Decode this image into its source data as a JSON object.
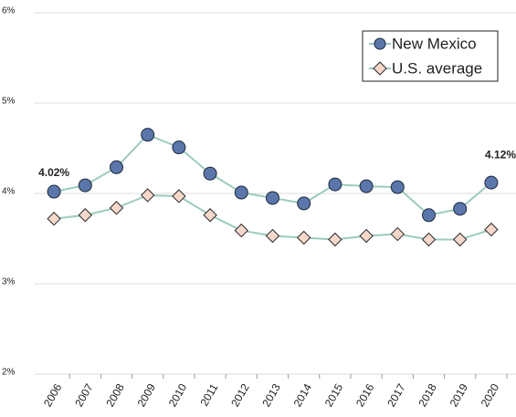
{
  "chart_data": {
    "type": "line",
    "categories": [
      "2006",
      "2007",
      "2008",
      "2009",
      "2010",
      "2011",
      "2012",
      "2013",
      "2014",
      "2015",
      "2016",
      "2017",
      "2018",
      "2019",
      "2020"
    ],
    "series": [
      {
        "name": "New Mexico",
        "color": "#5a76ab",
        "marker": "circle",
        "values": [
          4.02,
          4.09,
          4.29,
          4.65,
          4.51,
          4.22,
          4.01,
          3.95,
          3.89,
          4.1,
          4.08,
          4.07,
          3.76,
          3.83,
          4.12
        ],
        "value_labels": [
          "4.02%",
          null,
          null,
          null,
          null,
          null,
          null,
          null,
          null,
          null,
          null,
          null,
          null,
          null,
          "4.12%"
        ]
      },
      {
        "name": "U.S. average",
        "color": "#f6d8cb",
        "marker": "diamond",
        "values": [
          3.72,
          3.76,
          3.84,
          3.98,
          3.97,
          3.76,
          3.59,
          3.53,
          3.51,
          3.49,
          3.53,
          3.55,
          3.49,
          3.49,
          3.6
        ]
      }
    ],
    "line_color": "#9ccbbd",
    "ylim": [
      2,
      6
    ],
    "yticks": [
      {
        "value": 2,
        "label": "2%"
      },
      {
        "value": 3,
        "label": "3%"
      },
      {
        "value": 4,
        "label": "4%"
      },
      {
        "value": 5,
        "label": "5%"
      },
      {
        "value": 6,
        "label": "6%"
      }
    ],
    "grid": true,
    "legend": "upper right"
  }
}
